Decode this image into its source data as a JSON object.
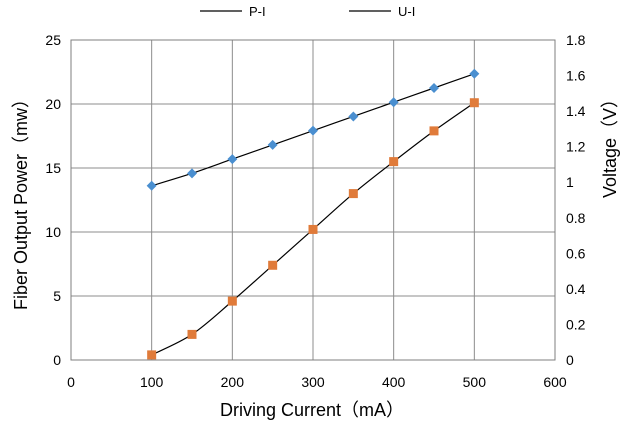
{
  "chart_data": {
    "type": "line",
    "title": "",
    "xlabel": "Driving Current（mA）",
    "ylabel": "Fiber Output Power（mw）",
    "y2label": "Voltage（V）",
    "xlim": [
      0,
      600
    ],
    "ylim": [
      0,
      25
    ],
    "y2lim": [
      0,
      1.8
    ],
    "x_ticks": [
      "0",
      "100",
      "200",
      "300",
      "400",
      "500",
      "600"
    ],
    "y_ticks": [
      "0",
      "5",
      "10",
      "15",
      "20",
      "25"
    ],
    "y2_ticks": [
      "0",
      "0.2",
      "0.4",
      "0.6",
      "0.8",
      "1",
      "1.2",
      "1.4",
      "1.6",
      "1.8"
    ],
    "grid": true,
    "legend_position": "top",
    "series": [
      {
        "name": "P-I",
        "axis": "left",
        "marker": "square",
        "color": "#e07b3a",
        "x": [
          100,
          150,
          200,
          250,
          300,
          350,
          400,
          450,
          500
        ],
        "values": [
          0.4,
          2.0,
          4.6,
          7.4,
          10.2,
          13.0,
          15.5,
          17.9,
          20.1
        ]
      },
      {
        "name": "U-I",
        "axis": "right",
        "marker": "diamond",
        "color": "#4a8fd0",
        "x": [
          100,
          150,
          200,
          250,
          300,
          350,
          400,
          450,
          500
        ],
        "values": [
          0.98,
          1.05,
          1.13,
          1.21,
          1.29,
          1.37,
          1.45,
          1.53,
          1.61
        ]
      }
    ]
  }
}
